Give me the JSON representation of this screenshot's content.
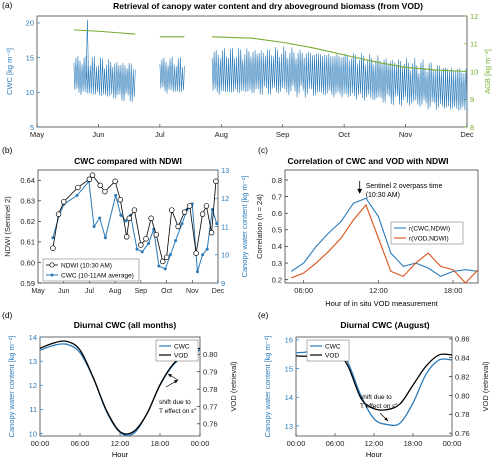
{
  "panels": {
    "a": {
      "letter": "(a)",
      "title": "Retrieval of canopy water content and dry aboveground biomass (from VOD)"
    },
    "b": {
      "letter": "(b)",
      "title": "CWC compared with NDWI"
    },
    "c": {
      "letter": "(c)",
      "title": "Correlation of CWC and VOD with NDWI"
    },
    "d": {
      "letter": "(d)",
      "title": "Diurnal CWC (all months)"
    },
    "e": {
      "letter": "(e)",
      "title": "Diurnal CWC (August)"
    }
  },
  "colors": {
    "blue": "#2a7ab9",
    "green": "#77ac30",
    "orange": "#d95319",
    "black": "#000000"
  },
  "chart_data": [
    {
      "id": "a",
      "type": "line",
      "title": "Retrieval of canopy water content and dry aboveground biomass (from VOD)",
      "ylabel": "CWC [kg m⁻²]",
      "y2label": "AGB [kg m⁻²]",
      "x_ticks": [
        "May",
        "Jun",
        "Jul",
        "Aug",
        "Sep",
        "Oct",
        "Nov",
        "Dec"
      ],
      "ylim": [
        5,
        21
      ],
      "y_ticks": [
        5,
        10,
        15,
        20
      ],
      "y2lim": [
        8,
        12
      ],
      "y2_ticks": [
        8,
        9,
        10,
        11,
        12
      ],
      "series": [
        {
          "name": "CWC",
          "axis": "left",
          "color": "#2a7ab9",
          "segments": [
            {
              "start": 0.6,
              "end": 1.6,
              "baseline": [
                [
                  0.6,
                  12.3
                ],
                [
                  1.6,
                  11.2
                ]
              ],
              "amp": 2.2
            },
            {
              "start": 2.0,
              "end": 2.4,
              "baseline": [
                [
                  2.0,
                  12.3
                ],
                [
                  2.4,
                  12.0
                ]
              ],
              "amp": 2.0
            },
            {
              "start": 2.85,
              "end": 7.0,
              "baseline": [
                [
                  2.85,
                  12.6
                ],
                [
                  4.0,
                  12.8
                ],
                [
                  5.0,
                  12.2
                ],
                [
                  6.0,
                  11.2
                ],
                [
                  7.0,
                  10.0
                ]
              ],
              "amp": 2.6
            }
          ]
        },
        {
          "name": "AGB",
          "axis": "right",
          "color": "#77ac30",
          "segments": [
            {
              "points": [
                [
                  0.6,
                  11.5
                ],
                [
                  1.0,
                  11.45
                ],
                [
                  1.6,
                  11.35
                ]
              ]
            },
            {
              "points": [
                [
                  2.0,
                  11.25
                ],
                [
                  2.4,
                  11.25
                ]
              ]
            },
            {
              "points": [
                [
                  2.85,
                  11.25
                ],
                [
                  3.5,
                  11.2
                ],
                [
                  4.0,
                  11.05
                ],
                [
                  4.5,
                  10.85
                ],
                [
                  5.0,
                  10.6
                ],
                [
                  5.5,
                  10.35
                ],
                [
                  6.0,
                  10.15
                ],
                [
                  6.5,
                  10.05
                ],
                [
                  7.0,
                  10.0
                ]
              ]
            }
          ]
        }
      ]
    },
    {
      "id": "b",
      "type": "line",
      "title": "CWC compared with NDWI",
      "ylabel": "NDWI (Sentinel 2)",
      "y2label": "Canopy water content [kg m⁻²]",
      "x_ticks": [
        "May",
        "Jun",
        "Jul",
        "Aug",
        "Sep",
        "Oct",
        "Nov",
        "Dec"
      ],
      "ylim": [
        0.59,
        0.645
      ],
      "y_ticks": [
        0.59,
        0.6,
        0.61,
        0.62,
        0.63,
        0.64
      ],
      "y2lim": [
        9,
        13
      ],
      "y2_ticks": [
        9,
        10,
        11,
        12,
        13
      ],
      "series": [
        {
          "name": "NDWI (10:30 AM)",
          "axis": "left",
          "color": "#000000",
          "marker": "circle",
          "x": [
            0.58,
            0.8,
            1.0,
            1.55,
            2.0,
            2.12,
            2.42,
            2.6,
            3.0,
            3.2,
            3.45,
            3.55,
            3.75,
            4.0,
            4.2,
            4.4,
            4.6,
            4.85,
            5.0,
            5.2,
            5.45,
            5.7,
            5.9,
            6.15,
            6.4,
            6.55,
            6.75,
            6.92
          ],
          "y": [
            0.607,
            0.6235,
            0.6295,
            0.6365,
            0.6405,
            0.6425,
            0.6375,
            0.6345,
            0.6395,
            0.6305,
            0.6125,
            0.6215,
            0.6255,
            0.6085,
            0.6115,
            0.6215,
            0.6135,
            0.6005,
            0.6025,
            0.6255,
            0.6175,
            0.6245,
            0.6275,
            0.6045,
            0.6235,
            0.6275,
            0.6145,
            0.6395
          ]
        },
        {
          "name": "CWC (10-11AM average)",
          "axis": "right",
          "color": "#2a7ab9",
          "marker": "dot",
          "x": [
            0.58,
            0.82,
            1.02,
            1.52,
            1.98,
            2.18,
            2.4,
            2.62,
            3.02,
            3.22,
            3.42,
            3.6,
            3.85,
            4.05,
            4.3,
            4.5,
            4.7,
            4.95,
            5.15,
            5.35,
            5.6,
            5.8,
            6.0,
            6.2,
            6.4,
            6.58,
            6.78,
            6.95
          ],
          "y": [
            10.6,
            11.4,
            11.8,
            12.1,
            12.6,
            11.0,
            11.3,
            10.6,
            12.1,
            11.4,
            11.2,
            11.4,
            10.2,
            10.1,
            10.4,
            10.9,
            9.6,
            9.5,
            10.0,
            10.5,
            11.1,
            11.6,
            11.8,
            9.4,
            10.0,
            10.2,
            11.6,
            11.1
          ]
        }
      ]
    },
    {
      "id": "c",
      "type": "line",
      "title": "Correlation of CWC and VOD with NDWI",
      "xlabel": "Hour of in situ VOD measurement",
      "ylabel": "Correlation (n = 24)",
      "x_ticks": [
        "06:00",
        "12:00",
        "18:00"
      ],
      "xlim": [
        4.5,
        20
      ],
      "ylim": [
        0.18,
        0.86
      ],
      "y_ticks": [
        0.2,
        0.3,
        0.4,
        0.5,
        0.6,
        0.7,
        0.8
      ],
      "annotation": {
        "line1": "Sentinel 2 overpass time",
        "line2": "(10:30 AM)",
        "x": 10.5,
        "y": 0.71
      },
      "series": [
        {
          "name": "r(CWC,NDWI)",
          "color": "#2a7ab9",
          "x": [
            5,
            6,
            7,
            8,
            9,
            10,
            11,
            12,
            13,
            14,
            15,
            16,
            17,
            18,
            19,
            20
          ],
          "y": [
            0.25,
            0.3,
            0.4,
            0.48,
            0.55,
            0.66,
            0.69,
            0.58,
            0.36,
            0.28,
            0.3,
            0.27,
            0.22,
            0.25,
            0.26,
            0.25
          ]
        },
        {
          "name": "r(VOD,NDWI)",
          "color": "#d95319",
          "x": [
            5,
            6,
            7,
            8,
            9,
            10,
            11,
            12,
            13,
            14,
            15,
            16,
            17,
            18,
            19,
            20
          ],
          "y": [
            0.21,
            0.24,
            0.3,
            0.37,
            0.45,
            0.56,
            0.65,
            0.45,
            0.25,
            0.22,
            0.3,
            0.36,
            0.28,
            0.26,
            0.18,
            0.26
          ]
        }
      ]
    },
    {
      "id": "d",
      "type": "line",
      "title": "Diurnal CWC (all months)",
      "xlabel": "Hour",
      "ylabel": "Canopy water content [kg m⁻²]",
      "y2label": "VOD (retrieval)",
      "x_ticks": [
        "00:00",
        "06:00",
        "12:00",
        "18:00",
        "00:00"
      ],
      "xlim": [
        0,
        24
      ],
      "ylim": [
        9.9,
        14
      ],
      "y_ticks": [
        10,
        11,
        12,
        13,
        14
      ],
      "y2lim": [
        0.753,
        0.81
      ],
      "y2_ticks": [
        0.76,
        0.77,
        0.78,
        0.79,
        0.8
      ],
      "annotation": {
        "line1": "shift due to",
        "line2": "T effect on ε″"
      },
      "series": [
        {
          "name": "CWC",
          "axis": "left",
          "color": "#2a7ab9",
          "x": [
            0,
            2,
            4,
            6,
            8,
            10,
            12,
            14,
            16,
            18,
            20,
            22,
            24
          ],
          "y": [
            13.45,
            13.65,
            13.7,
            13.35,
            12.3,
            10.9,
            10.05,
            10.0,
            10.8,
            12.0,
            12.85,
            13.25,
            13.45
          ]
        },
        {
          "name": "VOD",
          "axis": "right",
          "color": "#000000",
          "x": [
            0,
            2,
            4,
            6,
            8,
            10,
            12,
            14,
            16,
            18,
            20,
            22,
            24
          ],
          "y": [
            0.8035,
            0.8065,
            0.8075,
            0.8025,
            0.7865,
            0.7675,
            0.7555,
            0.7555,
            0.7655,
            0.7825,
            0.7945,
            0.8005,
            0.8035
          ]
        }
      ]
    },
    {
      "id": "e",
      "type": "line",
      "title": "Diurnal CWC (August)",
      "xlabel": "Hour",
      "ylabel": "Canopy water content [kg m⁻²]",
      "y2label": "VOD (retrieval)",
      "x_ticks": [
        "00:00",
        "06:00",
        "12:00",
        "18:00",
        "00:00"
      ],
      "xlim": [
        0,
        24
      ],
      "ylim": [
        12.65,
        16.1
      ],
      "y_ticks": [
        13,
        14,
        15,
        16
      ],
      "y2lim": [
        0.757,
        0.862
      ],
      "y2_ticks": [
        0.76,
        0.78,
        0.8,
        0.82,
        0.84,
        0.86
      ],
      "annotation": {
        "line1": "shift due to",
        "line2": "T effect on ε″"
      },
      "series": [
        {
          "name": "CWC",
          "axis": "left",
          "color": "#2a7ab9",
          "x": [
            0,
            2,
            4,
            6,
            8,
            10,
            12,
            14,
            16,
            18,
            20,
            22,
            24
          ],
          "y": [
            15.55,
            15.6,
            15.85,
            15.85,
            15.2,
            14.05,
            13.25,
            13.05,
            13.1,
            13.8,
            14.8,
            15.3,
            15.3
          ]
        },
        {
          "name": "VOD",
          "axis": "right",
          "color": "#000000",
          "x": [
            0,
            2,
            4,
            6,
            8,
            10,
            12,
            14,
            16,
            18,
            20,
            22,
            24
          ],
          "y": [
            0.842,
            0.842,
            0.848,
            0.849,
            0.831,
            0.797,
            0.786,
            0.785,
            0.791,
            0.811,
            0.831,
            0.843,
            0.843
          ]
        }
      ]
    }
  ]
}
